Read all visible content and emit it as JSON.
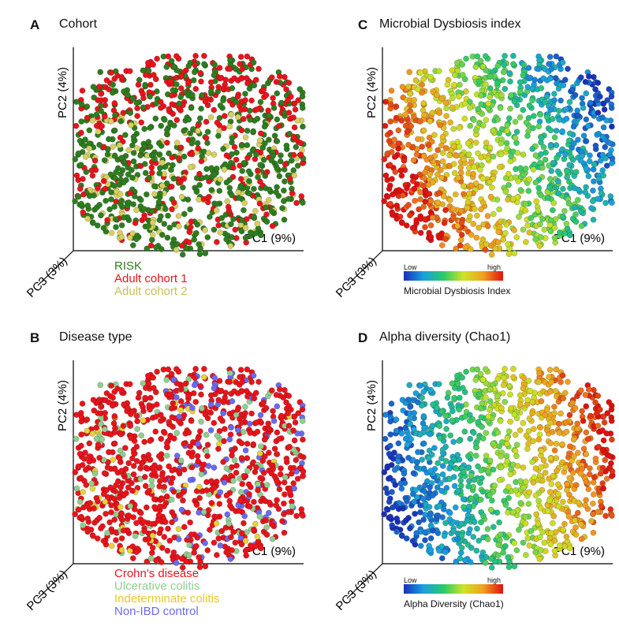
{
  "panels": {
    "A": {
      "letter": "A",
      "title": "Cohort"
    },
    "B": {
      "letter": "B",
      "title": "Disease type"
    },
    "C": {
      "letter": "C",
      "title": "Microbial Dysbiosis index"
    },
    "D": {
      "letter": "D",
      "title": "Alpha diversity (Chao1)"
    }
  },
  "axes": {
    "pc1": "PC1 (9%)",
    "pc2": "PC2 (4%)",
    "pc3": "PC3 (3%)"
  },
  "legend_a": [
    {
      "label": "RISK",
      "color": "#2e7d1f"
    },
    {
      "label": "Adult cohort 1",
      "color": "#e8141b"
    },
    {
      "label": "Adult cohort 2",
      "color": "#d8cf62"
    }
  ],
  "legend_b": [
    {
      "label": "Crohn's disease",
      "color": "#e8141b"
    },
    {
      "label": "Ulcerative colitis",
      "color": "#8fce8f"
    },
    {
      "label": "Indeterminate colitis",
      "color": "#e8d23a"
    },
    {
      "label": "Non-IBD control",
      "color": "#6a6af0"
    }
  ],
  "colorbar_c": {
    "low": "Low",
    "high": "high",
    "label": "Microbial Dysbiosis Index"
  },
  "colorbar_d": {
    "low": "Low",
    "high": "high",
    "label": "Alpha Diversity (Chao1)"
  },
  "colors": {
    "gradient": [
      "#1a2fb8",
      "#1aa0e0",
      "#2ac96a",
      "#cde327",
      "#f0a020",
      "#e01010"
    ]
  },
  "chart_data": [
    {
      "type": "scatter",
      "panel": "A",
      "title": "Cohort",
      "xlabel": "PC1 (9%)",
      "ylabel": "PC2 (4%)",
      "zlabel": "PC3 (3%)",
      "series": [
        {
          "name": "RISK",
          "color": "#2e7d1f"
        },
        {
          "name": "Adult cohort 1",
          "color": "#e8141b"
        },
        {
          "name": "Adult cohort 2",
          "color": "#d8cf62"
        }
      ]
    },
    {
      "type": "scatter",
      "panel": "B",
      "title": "Disease type",
      "xlabel": "PC1 (9%)",
      "ylabel": "PC2 (4%)",
      "zlabel": "PC3 (3%)",
      "series": [
        {
          "name": "Crohn's disease",
          "color": "#e8141b"
        },
        {
          "name": "Ulcerative colitis",
          "color": "#8fce8f"
        },
        {
          "name": "Indeterminate colitis",
          "color": "#e8d23a"
        },
        {
          "name": "Non-IBD control",
          "color": "#6a6af0"
        }
      ]
    },
    {
      "type": "scatter",
      "panel": "C",
      "title": "Microbial Dysbiosis index",
      "xlabel": "PC1 (9%)",
      "ylabel": "PC2 (4%)",
      "zlabel": "PC3 (3%)",
      "color_scale": "low-high (blue to red)"
    },
    {
      "type": "scatter",
      "panel": "D",
      "title": "Alpha diversity (Chao1)",
      "xlabel": "PC1 (9%)",
      "ylabel": "PC2 (4%)",
      "zlabel": "PC3 (3%)",
      "color_scale": "low-high (blue to red)"
    }
  ]
}
